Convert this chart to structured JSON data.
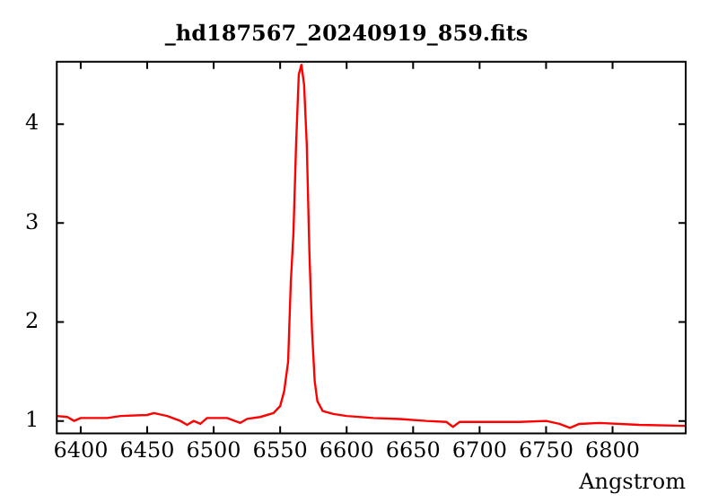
{
  "chart_data": {
    "type": "line",
    "title": "_hd187567_20240919_859.fits",
    "xlabel": "Angstrom",
    "xlim": [
      6382,
      6855
    ],
    "xticks": [
      6400,
      6450,
      6500,
      6550,
      6600,
      6650,
      6700,
      6750,
      6800
    ],
    "ylim": [
      0.875,
      4.63
    ],
    "yticks": [
      1,
      2,
      3,
      4
    ],
    "grid": false,
    "legend": false,
    "marker": "none",
    "line_style": "solid",
    "series": [
      {
        "color": "#ff0000",
        "x": [
          6382,
          6390,
          6395,
          6400,
          6420,
          6430,
          6450,
          6455,
          6465,
          6475,
          6480,
          6485,
          6490,
          6495,
          6510,
          6520,
          6525,
          6535,
          6545,
          6550,
          6553,
          6556,
          6558,
          6560,
          6562,
          6564,
          6566,
          6568,
          6570,
          6572,
          6574,
          6576,
          6578,
          6582,
          6590,
          6600,
          6620,
          6640,
          6660,
          6675,
          6680,
          6685,
          6700,
          6730,
          6750,
          6760,
          6768,
          6775,
          6790,
          6820,
          6855
        ],
        "values": [
          1.05,
          1.04,
          1.0,
          1.03,
          1.03,
          1.05,
          1.06,
          1.08,
          1.05,
          1.0,
          0.96,
          1.0,
          0.97,
          1.03,
          1.03,
          0.98,
          1.02,
          1.04,
          1.08,
          1.15,
          1.3,
          1.6,
          2.4,
          2.9,
          3.8,
          4.5,
          4.6,
          4.4,
          3.8,
          2.7,
          1.9,
          1.4,
          1.2,
          1.1,
          1.07,
          1.05,
          1.03,
          1.02,
          1.0,
          0.99,
          0.94,
          0.99,
          0.99,
          0.99,
          1.0,
          0.97,
          0.93,
          0.97,
          0.98,
          0.96,
          0.95
        ]
      }
    ]
  }
}
